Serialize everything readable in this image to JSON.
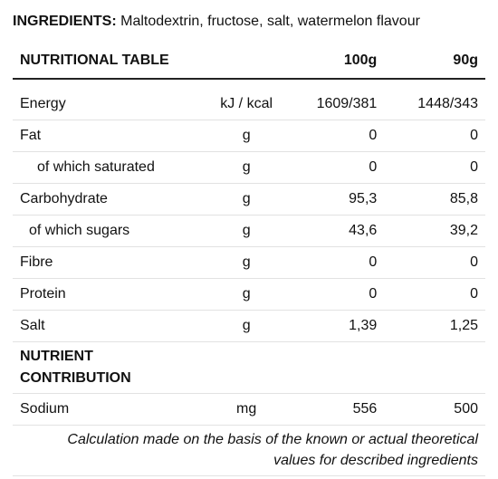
{
  "ingredients": {
    "label": "INGREDIENTS:",
    "text": " Maltodextrin, fructose, salt, watermelon flavour"
  },
  "table": {
    "header": {
      "title": "NUTRITIONAL TABLE",
      "col_100g": "100g",
      "col_90g": "90g"
    },
    "rows": [
      {
        "name": "Energy",
        "unit": "kJ / kcal",
        "v100": "1609/381",
        "v90": "1448/343"
      },
      {
        "name": "Fat",
        "unit": "g",
        "v100": "0",
        "v90": "0"
      },
      {
        "name": "of which saturated",
        "unit": "g",
        "v100": "0",
        "v90": "0"
      },
      {
        "name": "Carbohydrate",
        "unit": "g",
        "v100": "95,3",
        "v90": "85,8"
      },
      {
        "name": "of which sugars",
        "unit": "g",
        "v100": "43,6",
        "v90": "39,2"
      },
      {
        "name": "Fibre",
        "unit": "g",
        "v100": "0",
        "v90": "0"
      },
      {
        "name": "Protein",
        "unit": "g",
        "v100": "0",
        "v90": "0"
      },
      {
        "name": "Salt",
        "unit": "g",
        "v100": "1,39",
        "v90": "1,25"
      }
    ],
    "section": {
      "line1": "NUTRIENT",
      "line2": "CONTRIBUTION"
    },
    "sodium": {
      "name": "Sodium",
      "unit": "mg",
      "v100": "556",
      "v90": "500"
    },
    "note": {
      "line1": "Calculation made on the basis of the known or actual theoretical",
      "line2": "values for described ingredients"
    }
  }
}
